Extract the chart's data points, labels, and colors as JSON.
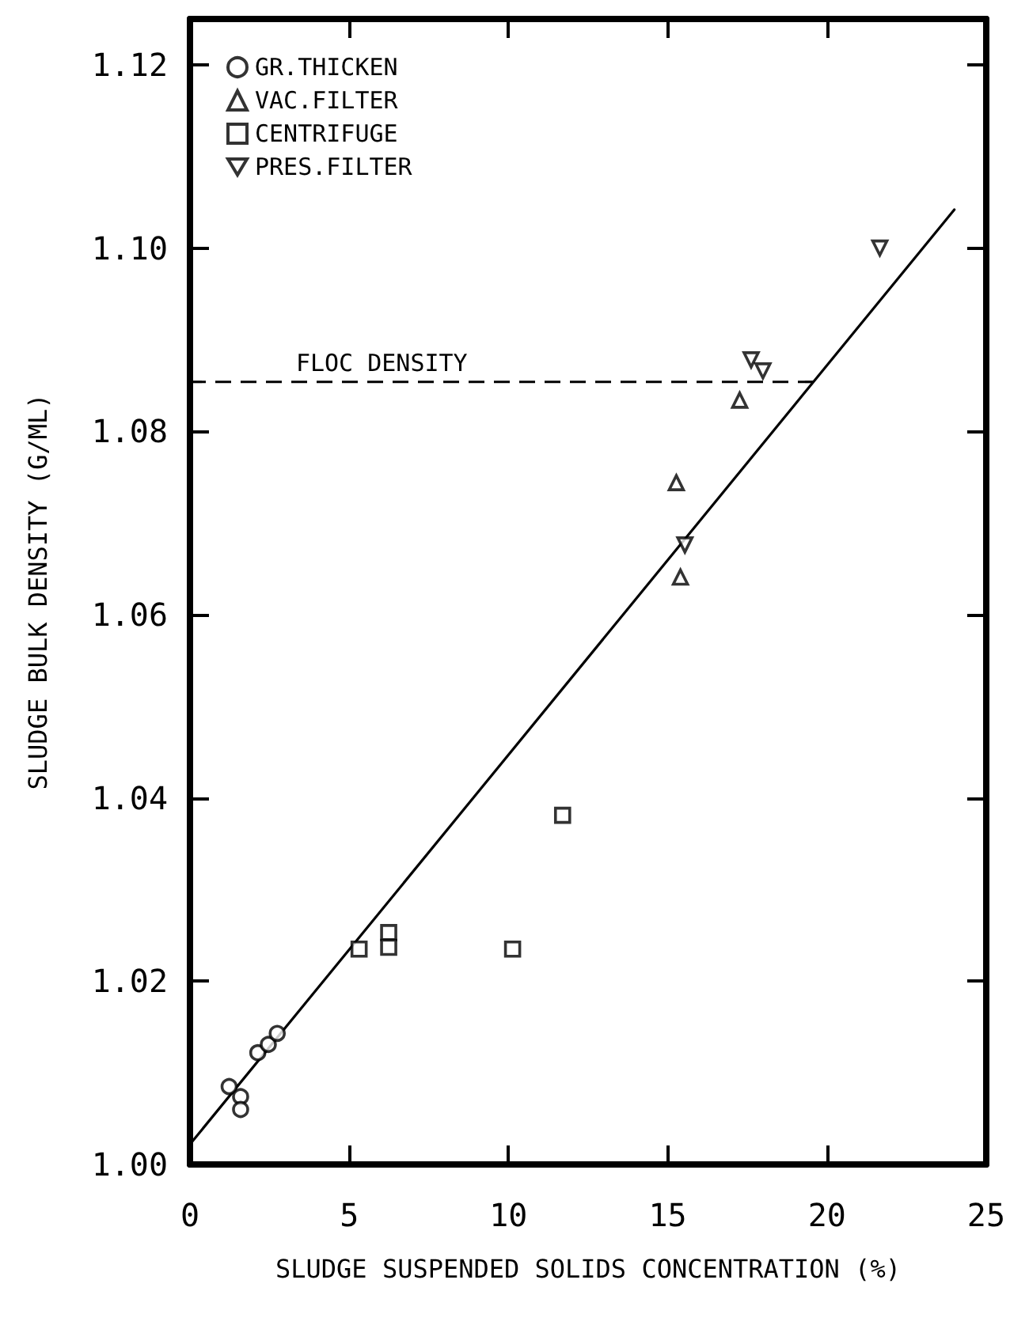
{
  "chart_data": {
    "type": "scatter",
    "xlabel": "SLUDGE SUSPENDED SOLIDS CONCENTRATION (%)",
    "ylabel": "SLUDGE BULK DENSITY (G/ML)",
    "xlim": [
      0,
      25
    ],
    "xticks": [
      0,
      5,
      10,
      15,
      20,
      25
    ],
    "ylim": [
      1.0,
      1.125
    ],
    "yticks": [
      {
        "value": 1.0,
        "label": "1.00"
      },
      {
        "value": 1.02,
        "label": "1.02"
      },
      {
        "value": 1.04,
        "label": "1.04"
      },
      {
        "value": 1.06,
        "label": "1.06"
      },
      {
        "value": 1.08,
        "label": "1.08"
      },
      {
        "value": 1.1,
        "label": "1.10"
      },
      {
        "value": 1.12,
        "label": "1.12"
      }
    ],
    "grid": false,
    "legend": "top left",
    "series": [
      {
        "name": "GR.THICKEN",
        "color": "#000000",
        "marker": "circle",
        "x": [
          1.23,
          1.59,
          1.59,
          2.13,
          2.46,
          2.74
        ],
        "values": [
          1.0085,
          1.0074,
          1.006,
          1.0122,
          1.0131,
          1.0143
        ]
      },
      {
        "name": "VAC.FILTER",
        "color": "#000000",
        "marker": "triangle",
        "x": [
          17.26,
          15.27,
          15.4
        ],
        "values": [
          1.0834,
          1.0744,
          1.0641
        ]
      },
      {
        "name": "CENTRIFUGE",
        "color": "#000000",
        "marker": "square",
        "x": [
          5.31,
          6.24,
          6.24,
          10.13,
          11.7
        ],
        "values": [
          1.0235,
          1.0253,
          1.0237,
          1.0235,
          1.0381
        ]
      },
      {
        "name": "PRES.FILTER",
        "color": "#000000",
        "marker": "triangle-down",
        "x": [
          17.62,
          17.99,
          15.54,
          21.66
        ],
        "values": [
          1.0878,
          1.0866,
          1.0676,
          1.1
        ]
      },
      {
        "type": "line",
        "color": "#000000",
        "marker": "none",
        "line_style": "solid",
        "x": [
          0,
          24
        ],
        "values": [
          1.0022,
          1.1042
        ]
      }
    ],
    "ref_lines": [
      {
        "axis": "y",
        "value": 1.0854,
        "label": "FLOC DENSITY",
        "line_style": "dashed",
        "color": "#000000"
      }
    ]
  }
}
